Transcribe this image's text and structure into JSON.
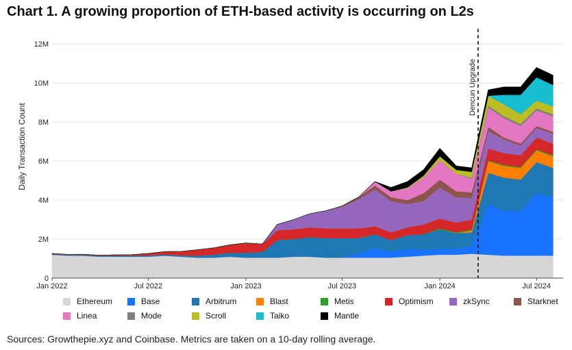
{
  "chart_data": {
    "type": "area",
    "stacked": true,
    "title": "Chart 1. A growing proportion of ETH-based activity is occurring on L2s",
    "ylabel": "Daily Transaction Count",
    "xlabel": "",
    "ylim": [
      0,
      12500000
    ],
    "y_ticks": [
      {
        "value": 0,
        "label": "0"
      },
      {
        "value": 2000000,
        "label": "2M"
      },
      {
        "value": 4000000,
        "label": "4M"
      },
      {
        "value": 6000000,
        "label": "6M"
      },
      {
        "value": 8000000,
        "label": "8M"
      },
      {
        "value": 10000000,
        "label": "10M"
      },
      {
        "value": 12000000,
        "label": "12M"
      }
    ],
    "x_ticks": [
      {
        "date": "2022-01-01",
        "label": "Jan 2022"
      },
      {
        "date": "2022-07-01",
        "label": "Jul 2022"
      },
      {
        "date": "2023-01-01",
        "label": "Jan 2023"
      },
      {
        "date": "2023-07-01",
        "label": "Jul 2023"
      },
      {
        "date": "2024-01-01",
        "label": "Jan 2024"
      },
      {
        "date": "2024-07-01",
        "label": "Jul 2024"
      }
    ],
    "x": [
      "2022-01-01",
      "2022-02-01",
      "2022-03-01",
      "2022-04-01",
      "2022-05-01",
      "2022-06-01",
      "2022-07-01",
      "2022-08-01",
      "2022-09-01",
      "2022-10-01",
      "2022-11-01",
      "2022-12-01",
      "2023-01-01",
      "2023-02-01",
      "2023-03-01",
      "2023-04-01",
      "2023-05-01",
      "2023-06-01",
      "2023-07-01",
      "2023-08-01",
      "2023-09-01",
      "2023-10-01",
      "2023-11-01",
      "2023-12-01",
      "2024-01-01",
      "2024-02-01",
      "2024-03-01",
      "2024-04-01",
      "2024-05-01",
      "2024-06-01",
      "2024-07-01",
      "2024-08-01"
    ],
    "annotations": [
      {
        "date": "2024-03-13",
        "label": "Dencun Upgrade",
        "style": "dashed-vertical-line"
      }
    ],
    "grid": "horizontal",
    "legend_position": "bottom",
    "series": [
      {
        "name": "Ethereum",
        "color": "#d6d6d6",
        "values": [
          1.2,
          1.15,
          1.15,
          1.1,
          1.1,
          1.1,
          1.1,
          1.15,
          1.1,
          1.05,
          1.05,
          1.1,
          1.05,
          1.05,
          1.05,
          1.1,
          1.1,
          1.05,
          1.05,
          1.05,
          1.05,
          1.05,
          1.1,
          1.15,
          1.2,
          1.2,
          1.25,
          1.2,
          1.15,
          1.15,
          1.15,
          1.15
        ]
      },
      {
        "name": "Base",
        "color": "#1a73ff",
        "values": [
          0,
          0,
          0,
          0,
          0,
          0,
          0,
          0,
          0,
          0,
          0,
          0,
          0,
          0,
          0,
          0,
          0,
          0,
          0,
          0.2,
          0.5,
          0.3,
          0.4,
          0.3,
          0.3,
          0.3,
          0.4,
          2.6,
          2.3,
          2.3,
          3.2,
          3.0
        ]
      },
      {
        "name": "Arbitrum",
        "color": "#1f77b4",
        "values": [
          0.04,
          0.04,
          0.04,
          0.04,
          0.05,
          0.05,
          0.06,
          0.06,
          0.07,
          0.1,
          0.15,
          0.2,
          0.25,
          0.3,
          0.9,
          0.9,
          1.0,
          1.0,
          1.0,
          0.8,
          0.7,
          0.6,
          0.7,
          0.8,
          1.0,
          0.8,
          0.7,
          1.6,
          1.7,
          1.6,
          1.6,
          1.5
        ]
      },
      {
        "name": "Blast",
        "color": "#ff8000",
        "values": [
          0,
          0,
          0,
          0,
          0,
          0,
          0,
          0,
          0,
          0,
          0,
          0,
          0,
          0,
          0,
          0,
          0,
          0,
          0,
          0,
          0,
          0,
          0,
          0,
          0,
          0,
          0.1,
          0.6,
          0.6,
          0.6,
          0.6,
          0.6
        ]
      },
      {
        "name": "Metis",
        "color": "#2ca02c",
        "values": [
          0,
          0,
          0,
          0,
          0,
          0,
          0,
          0,
          0,
          0,
          0,
          0,
          0,
          0,
          0,
          0,
          0,
          0,
          0,
          0,
          0,
          0,
          0,
          0,
          0.05,
          0.05,
          0.05,
          0.05,
          0.05,
          0.05,
          0.05,
          0.05
        ]
      },
      {
        "name": "Optimism",
        "color": "#d62728",
        "values": [
          0.02,
          0.02,
          0.03,
          0.03,
          0.04,
          0.05,
          0.1,
          0.15,
          0.2,
          0.3,
          0.35,
          0.4,
          0.5,
          0.4,
          0.5,
          0.5,
          0.5,
          0.5,
          0.5,
          0.5,
          0.4,
          0.4,
          0.4,
          0.5,
          0.5,
          0.5,
          0.5,
          0.6,
          0.6,
          0.6,
          0.6,
          0.6
        ]
      },
      {
        "name": "zkSync",
        "color": "#9467bd",
        "values": [
          0,
          0,
          0,
          0,
          0,
          0,
          0,
          0,
          0,
          0,
          0,
          0,
          0,
          0,
          0.3,
          0.5,
          0.7,
          0.9,
          1.1,
          1.5,
          1.9,
          1.6,
          1.2,
          1.2,
          1.6,
          1.3,
          1.1,
          0.9,
          0.7,
          0.5,
          0.5,
          0.5
        ]
      },
      {
        "name": "Starknet",
        "color": "#8c564b",
        "values": [
          0,
          0,
          0,
          0,
          0,
          0,
          0,
          0,
          0,
          0,
          0,
          0,
          0,
          0,
          0,
          0,
          0,
          0,
          0.05,
          0.1,
          0.2,
          0.2,
          0.2,
          0.4,
          0.4,
          0.3,
          0.3,
          0.2,
          0.1,
          0.1,
          0.1,
          0.1
        ]
      },
      {
        "name": "Linea",
        "color": "#e377c2",
        "values": [
          0,
          0,
          0,
          0,
          0,
          0,
          0,
          0,
          0,
          0,
          0,
          0,
          0,
          0,
          0,
          0,
          0,
          0,
          0,
          0,
          0.2,
          0.3,
          0.6,
          0.8,
          1.0,
          0.9,
          0.7,
          1.0,
          1.0,
          0.9,
          0.8,
          0.8
        ]
      },
      {
        "name": "Mode",
        "color": "#7f7f7f",
        "values": [
          0,
          0,
          0,
          0,
          0,
          0,
          0,
          0,
          0,
          0,
          0,
          0,
          0,
          0,
          0,
          0,
          0,
          0,
          0,
          0,
          0,
          0,
          0,
          0,
          0,
          0,
          0.05,
          0.1,
          0.1,
          0.1,
          0.1,
          0.1
        ]
      },
      {
        "name": "Scroll",
        "color": "#bcbd22",
        "values": [
          0,
          0,
          0,
          0,
          0,
          0,
          0,
          0,
          0,
          0,
          0,
          0,
          0,
          0,
          0,
          0,
          0,
          0,
          0,
          0,
          0,
          0,
          0.05,
          0.1,
          0.2,
          0.2,
          0.3,
          0.5,
          0.6,
          0.5,
          0.4,
          0.4
        ]
      },
      {
        "name": "Taiko",
        "color": "#17becf",
        "values": [
          0,
          0,
          0,
          0,
          0,
          0,
          0,
          0,
          0,
          0,
          0,
          0,
          0,
          0,
          0,
          0,
          0,
          0,
          0,
          0,
          0,
          0,
          0,
          0,
          0,
          0,
          0,
          0,
          0.5,
          1.0,
          1.2,
          1.1
        ]
      },
      {
        "name": "Mantle",
        "color": "#000000",
        "values": [
          0,
          0,
          0,
          0,
          0,
          0,
          0,
          0,
          0,
          0,
          0,
          0,
          0,
          0,
          0,
          0,
          0,
          0,
          0,
          0,
          0,
          0.2,
          0.3,
          0.3,
          0.4,
          0.2,
          0.2,
          0.3,
          0.4,
          0.4,
          0.5,
          0.5
        ]
      }
    ],
    "values_unit_scale": 1000000
  },
  "legend": {
    "items": [
      {
        "label": "Ethereum",
        "color": "#d6d6d6"
      },
      {
        "label": "Base",
        "color": "#1a73ff"
      },
      {
        "label": "Arbitrum",
        "color": "#1f77b4"
      },
      {
        "label": "Blast",
        "color": "#ff8000"
      },
      {
        "label": "Metis",
        "color": "#2ca02c"
      },
      {
        "label": "Optimism",
        "color": "#d62728"
      },
      {
        "label": "zkSync",
        "color": "#9467bd"
      },
      {
        "label": "Starknet",
        "color": "#8c564b"
      },
      {
        "label": "Linea",
        "color": "#e377c2"
      },
      {
        "label": "Mode",
        "color": "#7f7f7f"
      },
      {
        "label": "Scroll",
        "color": "#bcbd22"
      },
      {
        "label": "Taiko",
        "color": "#17becf"
      },
      {
        "label": "Mantle",
        "color": "#000000"
      }
    ]
  },
  "footer": {
    "sources": "Sources: Growthepie.xyz and Coinbase. Metrics are taken on a 10-day rolling average."
  }
}
